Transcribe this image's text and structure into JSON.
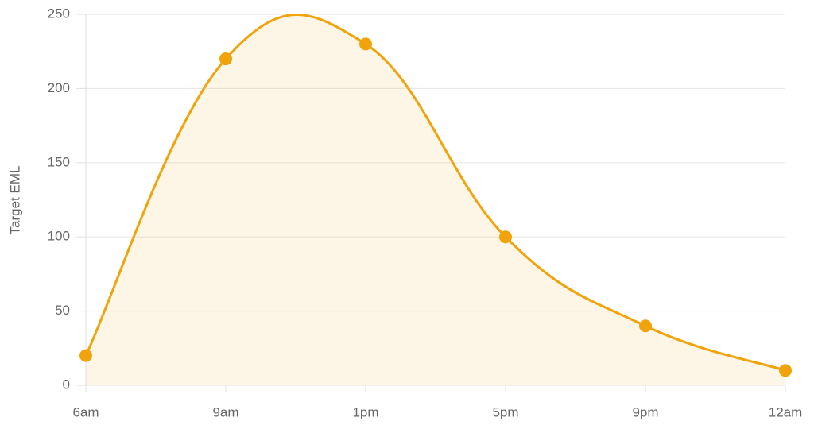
{
  "chart_data": {
    "type": "line",
    "y_label": "Target EML",
    "categories": [
      "6am",
      "9am",
      "1pm",
      "5pm",
      "9pm",
      "12am"
    ],
    "series": [
      {
        "name": "Target EML",
        "color": "#f0a30a",
        "values": [
          20,
          220,
          230,
          100,
          40,
          10
        ]
      }
    ],
    "ylim": [
      0,
      250
    ],
    "yticks": [
      0,
      50,
      100,
      150,
      200,
      250
    ],
    "grid": true,
    "fill": true,
    "smooth": true
  }
}
